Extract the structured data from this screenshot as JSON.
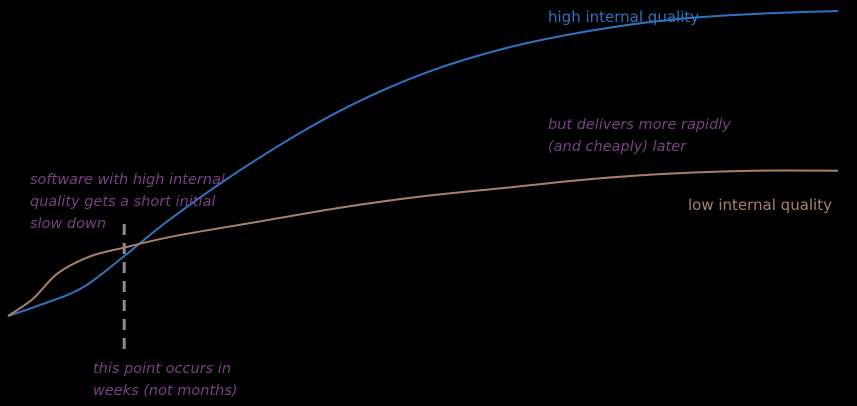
{
  "colors": {
    "background": "#000000",
    "high_quality": "#2f72c0",
    "low_quality": "#a98068",
    "annotation": "#7b3f86",
    "marker": "#8c8c8c"
  },
  "chart_data": {
    "type": "line",
    "title": "",
    "xlabel": "",
    "ylabel": "",
    "grid": false,
    "series": [
      {
        "name": "high internal quality",
        "points": [
          [
            0.0,
            0.0
          ],
          [
            0.04,
            0.04
          ],
          [
            0.09,
            0.1
          ],
          [
            0.14,
            0.21
          ],
          [
            0.2,
            0.35
          ],
          [
            0.3,
            0.55
          ],
          [
            0.4,
            0.72
          ],
          [
            0.5,
            0.85
          ],
          [
            0.6,
            0.94
          ],
          [
            0.7,
            1.0
          ],
          [
            0.8,
            1.04
          ],
          [
            0.9,
            1.06
          ],
          [
            1.0,
            1.07
          ]
        ],
        "label_text": "high internal quality"
      },
      {
        "name": "low internal quality",
        "points": [
          [
            0.0,
            0.0
          ],
          [
            0.03,
            0.06
          ],
          [
            0.06,
            0.15
          ],
          [
            0.1,
            0.21
          ],
          [
            0.14,
            0.24
          ],
          [
            0.2,
            0.28
          ],
          [
            0.3,
            0.33
          ],
          [
            0.4,
            0.38
          ],
          [
            0.5,
            0.42
          ],
          [
            0.6,
            0.45
          ],
          [
            0.7,
            0.48
          ],
          [
            0.8,
            0.5
          ],
          [
            0.9,
            0.51
          ],
          [
            1.0,
            0.51
          ]
        ],
        "label_text": "low internal quality"
      }
    ],
    "marker": {
      "x": 0.14
    },
    "annotations": [
      {
        "id": "slow-down",
        "lines": [
          "software with high internal",
          "quality gets a short initial",
          "slow down"
        ]
      },
      {
        "id": "delivers",
        "lines": [
          "but delivers more rapidly",
          "(and cheaply) later"
        ]
      },
      {
        "id": "point-occurs",
        "lines": [
          "this point occurs in",
          "weeks (not months)"
        ]
      }
    ]
  }
}
